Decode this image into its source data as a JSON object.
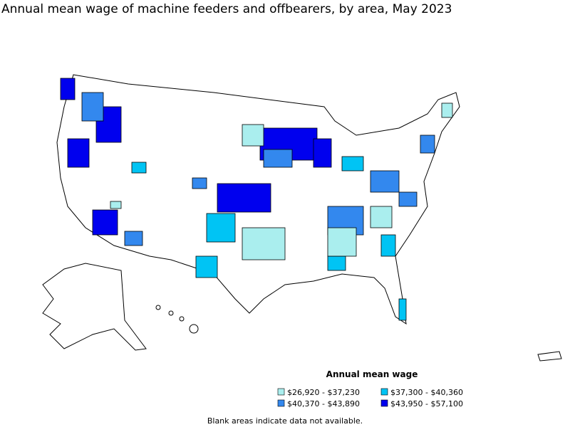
{
  "title": "Annual mean wage of machine feeders and offbearers, by area, May 2023",
  "legend": {
    "title": "Annual mean wage",
    "items": [
      {
        "label": "$26,920 - $37,230",
        "color": "#aaeeee"
      },
      {
        "label": "$37,300 - $40,360",
        "color": "#00c4f4"
      },
      {
        "label": "$40,370 - $43,890",
        "color": "#3388ee"
      },
      {
        "label": "$43,950 - $57,100",
        "color": "#0000ee"
      }
    ]
  },
  "footnote": "Blank areas indicate data not available."
}
